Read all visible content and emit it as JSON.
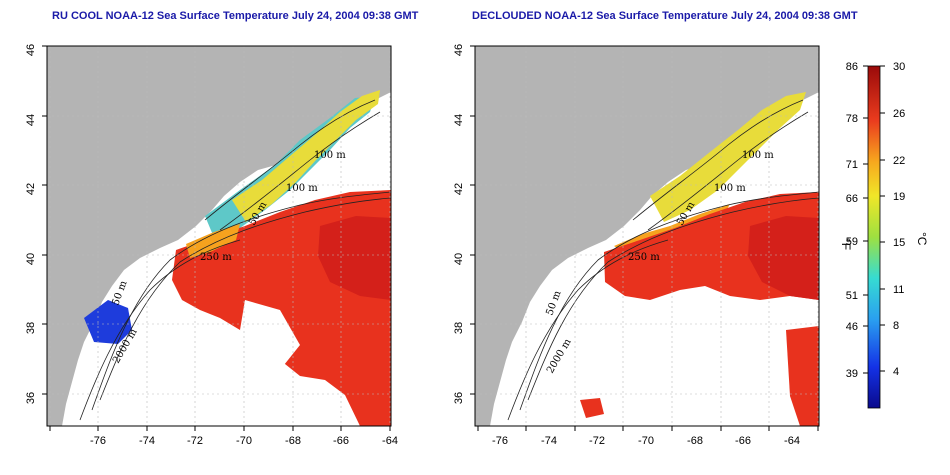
{
  "panels": [
    {
      "title": "RU COOL NOAA-12 Sea Surface Temperature July 24, 2004 09:38 GMT",
      "contours": [
        "100 m",
        "100 m",
        "50 m",
        "250 m",
        "50 m",
        "2000 m"
      ]
    },
    {
      "title": "DECLOUDED NOAA-12 Sea Surface Temperature July 24, 2004 09:38 GMT",
      "contours": [
        "100 m",
        "100 m",
        "50 m",
        "250 m",
        "50 m",
        "2000 m"
      ]
    }
  ],
  "axes": {
    "lon_ticks": [
      "-76",
      "-74",
      "-72",
      "-70",
      "-68",
      "-66",
      "-64"
    ],
    "lat_ticks": [
      "46",
      "44",
      "42",
      "40",
      "38",
      "36"
    ]
  },
  "colorbar": {
    "fahrenheit_label": "°F",
    "celsius_label": "°C",
    "fahrenheit_ticks": [
      "86",
      "78",
      "71",
      "66",
      "59",
      "51",
      "46",
      "39"
    ],
    "celsius_ticks": [
      "30",
      "26",
      "22",
      "19",
      "15",
      "11",
      "8",
      "4"
    ]
  },
  "colors": {
    "land": "#b4b4b4",
    "title": "#1a1aa8",
    "warm": "#e8321e",
    "cool": "#1e3cdc"
  }
}
